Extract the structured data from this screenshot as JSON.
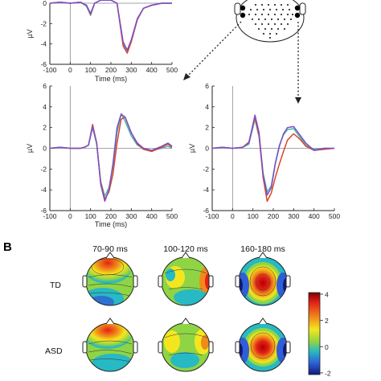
{
  "figure": {
    "panel_b_letter": "B",
    "colors": {
      "line_a": "#7b4fc9",
      "line_b": "#d9472b",
      "line_c": "#4fb6a8"
    }
  },
  "chart_data": [
    {
      "type": "line",
      "panel": "top-left",
      "xlabel": "Time (ms)",
      "ylabel": "µV",
      "xlim": [
        -100,
        500
      ],
      "ylim": [
        -6,
        0
      ],
      "xticks": [
        -100,
        0,
        100,
        200,
        300,
        400,
        500
      ],
      "yticks": [
        -6,
        -4,
        -2,
        0
      ],
      "x": [
        -100,
        -50,
        0,
        50,
        80,
        100,
        120,
        150,
        175,
        200,
        230,
        260,
        280,
        300,
        330,
        360,
        400,
        450,
        500
      ],
      "series": [
        {
          "values": [
            0,
            0.1,
            0,
            0.1,
            -0.2,
            -1.0,
            0,
            0.8,
            0.6,
            1.0,
            0,
            -3.8,
            -4.6,
            -3.6,
            -1.5,
            -0.5,
            -0.2,
            0,
            0
          ]
        },
        {
          "values": [
            0,
            0.1,
            0,
            0.1,
            -0.2,
            -1.1,
            0,
            0.7,
            0.6,
            0.9,
            0,
            -4.2,
            -4.9,
            -3.8,
            -1.6,
            -0.5,
            -0.2,
            0,
            0
          ]
        },
        {
          "values": [
            0,
            0.1,
            0,
            0.1,
            -0.3,
            -1.2,
            0,
            0.7,
            0.6,
            0.9,
            0,
            -4.0,
            -4.8,
            -3.7,
            -1.6,
            -0.5,
            -0.2,
            0,
            0
          ]
        }
      ]
    },
    {
      "type": "line",
      "panel": "middle-left",
      "xlabel": "Time (ms)",
      "ylabel": "µV",
      "xlim": [
        -100,
        500
      ],
      "ylim": [
        -6,
        6
      ],
      "xticks": [
        -100,
        0,
        100,
        200,
        300,
        400,
        500
      ],
      "yticks": [
        -6,
        -4,
        -2,
        0,
        2,
        4,
        6
      ],
      "x": [
        -100,
        -50,
        0,
        50,
        70,
        90,
        110,
        130,
        150,
        170,
        190,
        210,
        230,
        250,
        270,
        300,
        330,
        360,
        400,
        450,
        480,
        500
      ],
      "series": [
        {
          "values": [
            0,
            0.1,
            0,
            0,
            0.1,
            0.3,
            2.1,
            0.5,
            -3.5,
            -5.1,
            -4.0,
            -1.5,
            2.0,
            3.3,
            3.0,
            1.5,
            0.5,
            0,
            -0.2,
            0.2,
            0.5,
            0.2
          ]
        },
        {
          "values": [
            0,
            0.1,
            0,
            0,
            0.1,
            0.3,
            2.3,
            0.5,
            -3.3,
            -4.9,
            -4.2,
            -2.5,
            0.5,
            2.8,
            3.0,
            1.5,
            0.4,
            -0.1,
            -0.3,
            0.1,
            0.4,
            0.1
          ]
        },
        {
          "values": [
            0,
            0.1,
            0,
            0,
            0.1,
            0.3,
            2.0,
            0.4,
            -3.2,
            -4.6,
            -3.8,
            -1.8,
            1.5,
            3.3,
            2.6,
            1.2,
            0.3,
            0,
            -0.2,
            0,
            0.2,
            0
          ]
        }
      ]
    },
    {
      "type": "line",
      "panel": "middle-right",
      "xlabel": "",
      "ylabel": "µV",
      "xlim": [
        -100,
        500
      ],
      "ylim": [
        -6,
        6
      ],
      "xticks": [
        -100,
        0,
        100,
        200,
        300,
        400,
        500
      ],
      "yticks": [
        -6,
        -4,
        -2,
        0,
        2,
        4,
        6
      ],
      "x": [
        -100,
        -50,
        0,
        50,
        80,
        110,
        130,
        150,
        170,
        190,
        210,
        230,
        250,
        270,
        300,
        330,
        360,
        400,
        450,
        500
      ],
      "series": [
        {
          "values": [
            0,
            0.1,
            0,
            0.1,
            0.5,
            3.2,
            1.5,
            -2.5,
            -4.5,
            -3.8,
            -1.5,
            0.2,
            1.4,
            2.0,
            2.1,
            1.3,
            0.5,
            -0.2,
            0,
            0
          ]
        },
        {
          "values": [
            0,
            0.1,
            0,
            0.1,
            0.6,
            3.0,
            1.2,
            -2.8,
            -5.1,
            -4.3,
            -2.8,
            -1.5,
            -0.3,
            0.8,
            1.4,
            0.9,
            0.2,
            -0.2,
            -0.1,
            0
          ]
        },
        {
          "values": [
            0,
            0.1,
            0,
            0.1,
            0.4,
            2.8,
            1.1,
            -2.4,
            -4.2,
            -3.6,
            -1.4,
            0.3,
            1.3,
            1.8,
            1.9,
            1.1,
            0.3,
            -0.1,
            0,
            0
          ]
        }
      ]
    },
    {
      "type": "heatmap",
      "panel": "topographic-maps",
      "columns": [
        "70-90 ms",
        "100-120 ms",
        "160-180 ms"
      ],
      "rows": [
        "TD",
        "ASD"
      ],
      "colorbar": {
        "ticks": [
          4,
          2,
          0,
          -2
        ],
        "range": [
          -2,
          4
        ]
      }
    }
  ]
}
